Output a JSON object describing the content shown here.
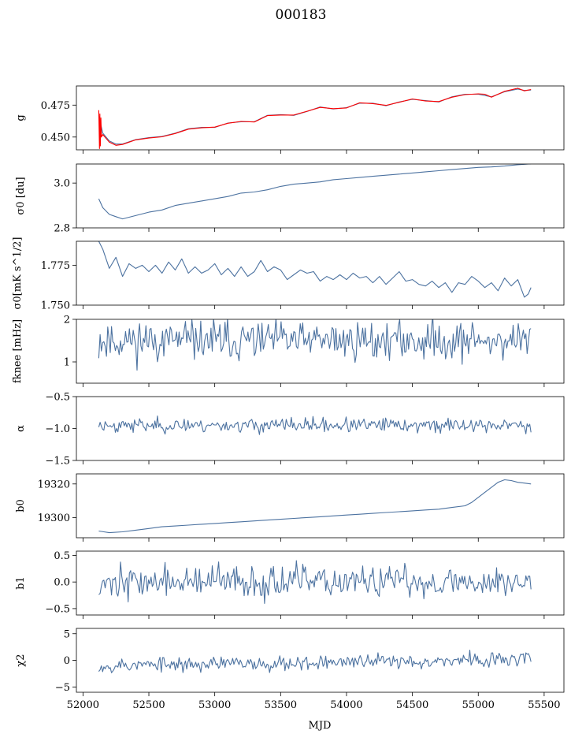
{
  "figure_title": "000183",
  "colors": {
    "series": "#4c72a0",
    "overlay": "#ff0000"
  },
  "x_axis": {
    "label": "MJD",
    "range": [
      51950,
      55650
    ],
    "ticks": [
      52000,
      52500,
      53000,
      53500,
      54000,
      54500,
      55000,
      55500
    ],
    "tick_labels": [
      "52000",
      "52500",
      "53000",
      "53500",
      "54000",
      "54500",
      "55000",
      "55500"
    ]
  },
  "chart_data": [
    {
      "type": "line",
      "key": "g",
      "ylabel": "g",
      "ylim": [
        0.44,
        0.49
      ],
      "yticks": [
        0.45,
        0.475
      ],
      "ytick_labels": [
        "0.450",
        "0.475"
      ],
      "series": [
        {
          "color": "#4c72a0",
          "x": [
            52120,
            52150,
            52200,
            52250,
            52300,
            52400,
            52500,
            52600,
            52700,
            52800,
            52900,
            53000,
            53100,
            53200,
            53300,
            53400,
            53500,
            53600,
            53700,
            53800,
            53900,
            54000,
            54100,
            54200,
            54300,
            54400,
            54500,
            54600,
            54700,
            54800,
            54900,
            55000,
            55100,
            55200,
            55300,
            55350,
            55400
          ],
          "y": [
            0.467,
            0.453,
            0.447,
            0.4445,
            0.4445,
            0.448,
            0.4495,
            0.4505,
            0.453,
            0.4565,
            0.4575,
            0.4575,
            0.461,
            0.462,
            0.462,
            0.467,
            0.4675,
            0.467,
            0.47,
            0.4735,
            0.472,
            0.473,
            0.4765,
            0.4765,
            0.4745,
            0.4775,
            0.4795,
            0.4785,
            0.4775,
            0.4815,
            0.4835,
            0.4835,
            0.4815,
            0.4855,
            0.4875,
            0.4865,
            0.4868
          ]
        },
        {
          "color": "#ff0000",
          "x": [
            52120,
            52125,
            52128,
            52132,
            52136,
            52140,
            52150,
            52200,
            52250,
            52300,
            52400,
            52500,
            52600,
            52700,
            52800,
            52900,
            53000,
            53100,
            53200,
            53300,
            53400,
            53500,
            53600,
            53700,
            53800,
            53900,
            54000,
            54100,
            54200,
            54300,
            54400,
            54500,
            54600,
            54700,
            54800,
            54900,
            55000,
            55050,
            55100,
            55200,
            55300,
            55350,
            55400
          ],
          "y": [
            0.471,
            0.441,
            0.468,
            0.443,
            0.465,
            0.45,
            0.452,
            0.446,
            0.4435,
            0.4442,
            0.4478,
            0.4492,
            0.4502,
            0.4528,
            0.4562,
            0.4572,
            0.4578,
            0.4608,
            0.4622,
            0.4618,
            0.4668,
            0.4672,
            0.4672,
            0.4702,
            0.4732,
            0.4722,
            0.4728,
            0.4768,
            0.4762,
            0.4748,
            0.4772,
            0.4798,
            0.4782,
            0.4778,
            0.4812,
            0.4832,
            0.4838,
            0.4835,
            0.4812,
            0.4858,
            0.4882,
            0.4862,
            0.4872
          ]
        }
      ]
    },
    {
      "type": "line",
      "key": "sigma0_du",
      "ylabel": "σ0 [du]",
      "ylim": [
        2.8,
        3.085
      ],
      "yticks": [
        2.8,
        3.0
      ],
      "ytick_labels": [
        "2.8",
        "3.0"
      ],
      "series": [
        {
          "color": "#4c72a0",
          "x": [
            52120,
            52150,
            52200,
            52250,
            52300,
            52400,
            52500,
            52600,
            52700,
            52800,
            52900,
            53000,
            53100,
            53200,
            53300,
            53400,
            53500,
            53600,
            53700,
            53800,
            53900,
            54000,
            54100,
            54200,
            54300,
            54400,
            54500,
            54600,
            54700,
            54800,
            54900,
            55000,
            55100,
            55200,
            55300,
            55400
          ],
          "y": [
            2.93,
            2.89,
            2.86,
            2.85,
            2.84,
            2.855,
            2.87,
            2.88,
            2.9,
            2.91,
            2.92,
            2.93,
            2.94,
            2.955,
            2.96,
            2.97,
            2.985,
            2.995,
            3.0,
            3.005,
            3.015,
            3.02,
            3.025,
            3.03,
            3.035,
            3.04,
            3.045,
            3.05,
            3.055,
            3.06,
            3.065,
            3.07,
            3.072,
            3.076,
            3.082,
            3.086
          ]
        }
      ]
    },
    {
      "type": "line",
      "key": "sigma0_mk",
      "ylabel": "σ0[mK s^1/2]",
      "ylim": [
        1.75,
        1.79
      ],
      "yticks": [
        1.75,
        1.775
      ],
      "ytick_labels": [
        "1.750",
        "1.775"
      ],
      "series": [
        {
          "color": "#4c72a0",
          "x": [
            52120,
            52150,
            52200,
            52250,
            52300,
            52350,
            52400,
            52450,
            52500,
            52550,
            52600,
            52650,
            52700,
            52750,
            52800,
            52850,
            52900,
            52950,
            53000,
            53050,
            53100,
            53150,
            53200,
            53250,
            53300,
            53350,
            53400,
            53450,
            53500,
            53550,
            53600,
            53650,
            53700,
            53750,
            53800,
            53850,
            53900,
            53950,
            54000,
            54050,
            54100,
            54150,
            54200,
            54250,
            54300,
            54350,
            54400,
            54450,
            54500,
            54550,
            54600,
            54650,
            54700,
            54750,
            54800,
            54850,
            54900,
            54950,
            55000,
            55050,
            55100,
            55150,
            55200,
            55250,
            55300,
            55350,
            55380,
            55400
          ],
          "y": [
            1.79,
            1.785,
            1.773,
            1.78,
            1.768,
            1.776,
            1.773,
            1.775,
            1.771,
            1.775,
            1.77,
            1.777,
            1.772,
            1.779,
            1.77,
            1.774,
            1.77,
            1.772,
            1.776,
            1.769,
            1.773,
            1.768,
            1.774,
            1.768,
            1.771,
            1.778,
            1.771,
            1.774,
            1.772,
            1.766,
            1.769,
            1.772,
            1.77,
            1.771,
            1.765,
            1.768,
            1.766,
            1.769,
            1.766,
            1.77,
            1.767,
            1.768,
            1.764,
            1.768,
            1.763,
            1.767,
            1.771,
            1.765,
            1.766,
            1.763,
            1.762,
            1.765,
            1.761,
            1.764,
            1.758,
            1.764,
            1.763,
            1.768,
            1.765,
            1.761,
            1.764,
            1.759,
            1.767,
            1.762,
            1.766,
            1.755,
            1.757,
            1.761
          ]
        }
      ]
    },
    {
      "type": "line",
      "key": "f_knee",
      "ylabel": "fknee [mHz]",
      "ylim": [
        0.5,
        2.0
      ],
      "yticks": [
        1,
        2
      ],
      "ytick_labels": [
        "1",
        "2"
      ],
      "series": [
        {
          "color": "#4c72a0",
          "noise": {
            "seed": 11,
            "n": 340,
            "mean": 1.5,
            "std": 0.23,
            "start": 52120,
            "end": 55400
          }
        }
      ]
    },
    {
      "type": "line",
      "key": "alpha",
      "ylabel": "α",
      "ylim": [
        -1.5,
        -0.5
      ],
      "yticks": [
        -1.5,
        -1.0,
        -0.5
      ],
      "ytick_labels": [
        "−1.5",
        "−1.0",
        "−0.5"
      ],
      "series": [
        {
          "color": "#4c72a0",
          "noise": {
            "seed": 23,
            "n": 340,
            "mean": -0.95,
            "std": 0.055,
            "start": 52120,
            "end": 55400
          }
        }
      ]
    },
    {
      "type": "line",
      "key": "b0",
      "ylabel": "b0",
      "ylim": [
        19288,
        19326
      ],
      "yticks": [
        19300,
        19320
      ],
      "ytick_labels": [
        "19300",
        "19320"
      ],
      "series": [
        {
          "color": "#4c72a0",
          "x": [
            52120,
            52200,
            52300,
            52400,
            52500,
            52600,
            52700,
            52800,
            52900,
            53000,
            53100,
            53200,
            53300,
            53400,
            53500,
            53600,
            53700,
            53800,
            53900,
            54000,
            54100,
            54200,
            54300,
            54400,
            54500,
            54600,
            54700,
            54800,
            54900,
            54950,
            55000,
            55050,
            55100,
            55150,
            55200,
            55250,
            55300,
            55350,
            55400
          ],
          "y": [
            19292,
            19291,
            19291.5,
            19292.5,
            19293.5,
            19294.5,
            19295,
            19295.5,
            19296,
            19296.5,
            19297,
            19297.5,
            19298,
            19298.5,
            19299,
            19299.5,
            19300,
            19300.5,
            19301,
            19301.5,
            19302,
            19302.5,
            19303,
            19303.5,
            19304,
            19304.5,
            19305,
            19306,
            19307,
            19309,
            19312,
            19315,
            19318,
            19321,
            19322.5,
            19322,
            19321,
            19320.5,
            19320
          ]
        }
      ]
    },
    {
      "type": "line",
      "key": "b1",
      "ylabel": "b1",
      "ylim": [
        -0.62,
        0.58
      ],
      "yticks": [
        -0.5,
        0.0,
        0.5
      ],
      "ytick_labels": [
        "−0.5",
        "0.0",
        "0.5"
      ],
      "series": [
        {
          "color": "#4c72a0",
          "noise": {
            "seed": 37,
            "n": 340,
            "mean": 0.0,
            "std": 0.15,
            "start": 52120,
            "end": 55400
          }
        }
      ]
    },
    {
      "type": "line",
      "key": "chi2",
      "ylabel": "χ2",
      "ylim": [
        -6,
        6
      ],
      "yticks": [
        -5,
        0,
        5
      ],
      "ytick_labels": [
        "−5",
        "0",
        "5"
      ],
      "series": [
        {
          "color": "#4c72a0",
          "noise": {
            "seed": 53,
            "n": 340,
            "mean": -1.0,
            "std": 0.7,
            "start": 52120,
            "end": 55400,
            "trend": 1.2
          }
        }
      ]
    }
  ]
}
